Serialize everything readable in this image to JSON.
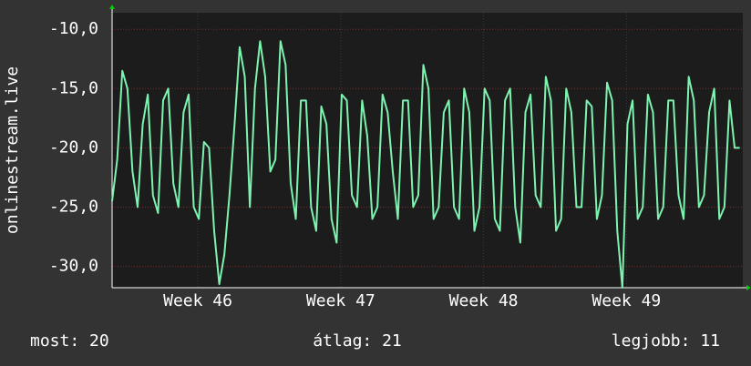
{
  "chart_data": {
    "type": "line",
    "ylabel": "onlinestream.live",
    "color": "#7df3b0",
    "grid": true,
    "ylim": [
      -31.8,
      -8.6
    ],
    "yticks": [
      {
        "value": -10,
        "label": "-10,0"
      },
      {
        "value": -15,
        "label": "-15,0"
      },
      {
        "value": -20,
        "label": "-20,0"
      },
      {
        "value": -25,
        "label": "-25,0"
      },
      {
        "value": -30,
        "label": "-30,0"
      }
    ],
    "xlim": [
      0,
      30.9
    ],
    "xticks": [
      {
        "value": 4.2,
        "label": "Week 46"
      },
      {
        "value": 11.2,
        "label": "Week 47"
      },
      {
        "value": 18.2,
        "label": "Week 48"
      },
      {
        "value": 25.2,
        "label": "Week 49"
      }
    ],
    "x": [
      0,
      0.25,
      0.5,
      0.75,
      1,
      1.25,
      1.5,
      1.75,
      2,
      2.25,
      2.5,
      2.75,
      3,
      3.25,
      3.5,
      3.75,
      4,
      4.25,
      4.5,
      4.75,
      5,
      5.25,
      5.5,
      5.75,
      6,
      6.25,
      6.5,
      6.75,
      7,
      7.25,
      7.5,
      7.75,
      8,
      8.25,
      8.5,
      8.75,
      9,
      9.25,
      9.5,
      9.75,
      10,
      10.25,
      10.5,
      10.75,
      11,
      11.25,
      11.5,
      11.75,
      12,
      12.25,
      12.5,
      12.75,
      13,
      13.25,
      13.5,
      13.75,
      14,
      14.25,
      14.5,
      14.75,
      15,
      15.25,
      15.5,
      15.75,
      16,
      16.25,
      16.5,
      16.75,
      17,
      17.25,
      17.5,
      17.75,
      18,
      18.25,
      18.5,
      18.75,
      19,
      19.25,
      19.5,
      19.75,
      20,
      20.25,
      20.5,
      20.75,
      21,
      21.25,
      21.5,
      21.75,
      22,
      22.25,
      22.5,
      22.75,
      23,
      23.25,
      23.5,
      23.75,
      24,
      24.25,
      24.5,
      24.75,
      25,
      25.25,
      25.5,
      25.75,
      26,
      26.25,
      26.5,
      26.75,
      27,
      27.25,
      27.5,
      27.75,
      28,
      28.25,
      28.5,
      28.75,
      29,
      29.25,
      29.5,
      29.75,
      30,
      30.25,
      30.5,
      30.75
    ],
    "values": [
      -24.5,
      -21,
      -13.5,
      -15,
      -22,
      -25,
      -18,
      -15.5,
      -24,
      -25.5,
      -16,
      -15,
      -23,
      -25,
      -17,
      -15.5,
      -25,
      -26,
      -19.5,
      -20,
      -27,
      -31.5,
      -29,
      -24,
      -18,
      -11.5,
      -14,
      -25,
      -15,
      -11,
      -14,
      -22,
      -21,
      -11,
      -13,
      -23,
      -26,
      -16,
      -16,
      -25,
      -27,
      -16.5,
      -18,
      -26,
      -28,
      -15.5,
      -16,
      -24,
      -25,
      -16,
      -19,
      -26,
      -25,
      -15.5,
      -17,
      -22,
      -26,
      -16,
      -16,
      -25,
      -24,
      -13,
      -15,
      -26,
      -25,
      -17,
      -16,
      -25,
      -26,
      -15,
      -17,
      -27,
      -25,
      -15,
      -16,
      -26,
      -27,
      -16,
      -15,
      -25,
      -28,
      -17,
      -15.5,
      -24,
      -25,
      -14,
      -16,
      -27,
      -26,
      -15,
      -17,
      -25,
      -25,
      -16,
      -16.5,
      -26,
      -24,
      -14.5,
      -16,
      -27,
      -31.8,
      -18,
      -16,
      -26,
      -25,
      -15.5,
      -17,
      -26,
      -25,
      -16,
      -16,
      -24,
      -26,
      -14,
      -16,
      -25,
      -24,
      -17,
      -15,
      -26,
      -25,
      -16,
      -20,
      -20
    ],
    "footer": [
      "most: 20",
      "átlag: 21",
      "legjobb: 11"
    ]
  }
}
